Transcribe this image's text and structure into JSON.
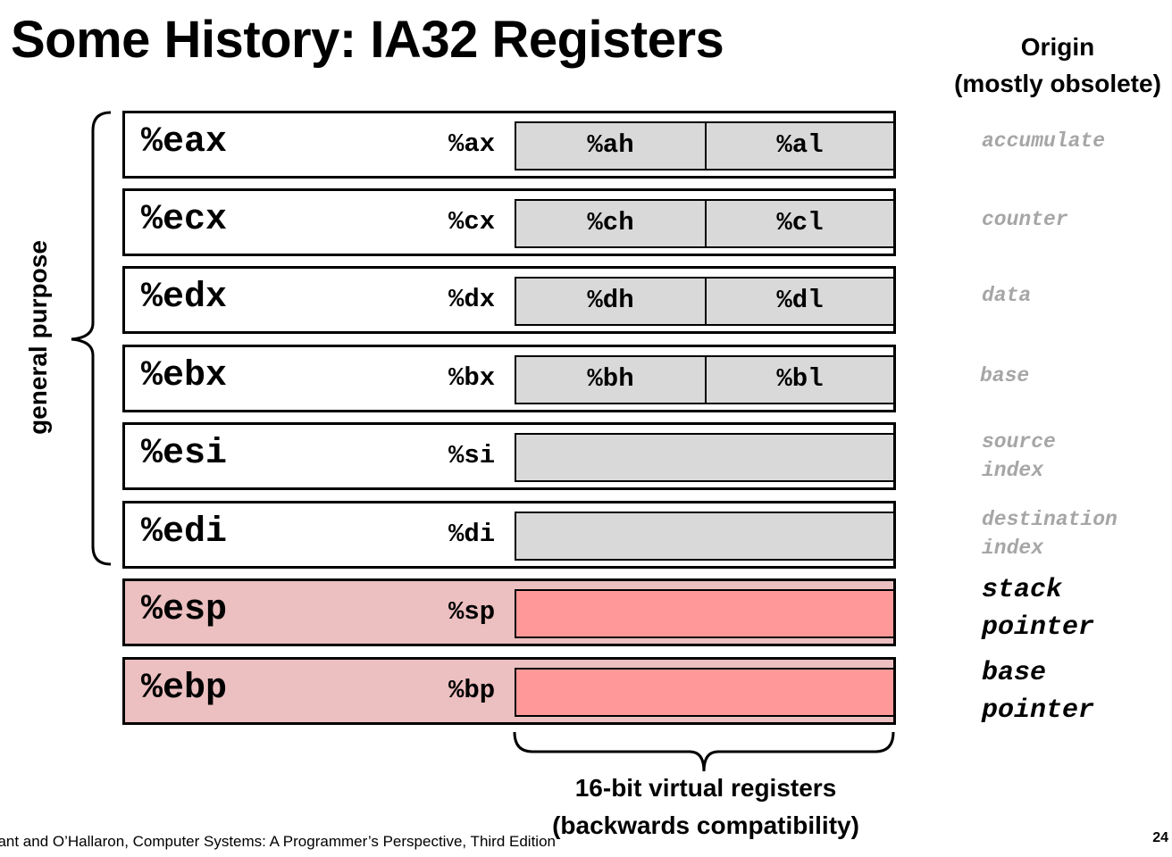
{
  "slide": {
    "title": "Some History: IA32 Registers",
    "origin_header": [
      "Origin",
      "(mostly obsolete)"
    ],
    "side_label": "general purpose",
    "registers": [
      {
        "name": "%eax",
        "sub16": "%ax",
        "high": "%ah",
        "low": "%al",
        "origin": [
          "accumulate"
        ],
        "special": false
      },
      {
        "name": "%ecx",
        "sub16": "%cx",
        "high": "%ch",
        "low": "%cl",
        "origin": [
          "counter"
        ],
        "special": false
      },
      {
        "name": "%edx",
        "sub16": "%dx",
        "high": "%dh",
        "low": "%dl",
        "origin": [
          "data"
        ],
        "special": false
      },
      {
        "name": "%ebx",
        "sub16": "%bx",
        "high": "%bh",
        "low": "%bl",
        "origin": [
          "base"
        ],
        "special": false
      },
      {
        "name": "%esi",
        "sub16": "%si",
        "origin": [
          "source",
          "index"
        ],
        "special": false
      },
      {
        "name": "%edi",
        "sub16": "%di",
        "origin": [
          "destination",
          "index"
        ],
        "special": false
      },
      {
        "name": "%esp",
        "sub16": "%sp",
        "origin": [
          "stack",
          "pointer"
        ],
        "special": true
      },
      {
        "name": "%ebp",
        "sub16": "%bp",
        "origin": [
          "base",
          "pointer"
        ],
        "special": true
      }
    ],
    "bottom_caption": [
      "16-bit virtual registers",
      "(backwards compatibility)"
    ],
    "footer": "Bryant and O’Hallaron, Computer Systems: A Programmer’s Perspective, Third Edition",
    "page_number": "24"
  },
  "colors": {
    "register_fill": "#ffffff",
    "special_register_fill": "#ecbfc0",
    "subregister_fill": "#d9d9d9",
    "special_subregister_fill": "#ff9999",
    "origin_text": "#a6a6a6"
  }
}
